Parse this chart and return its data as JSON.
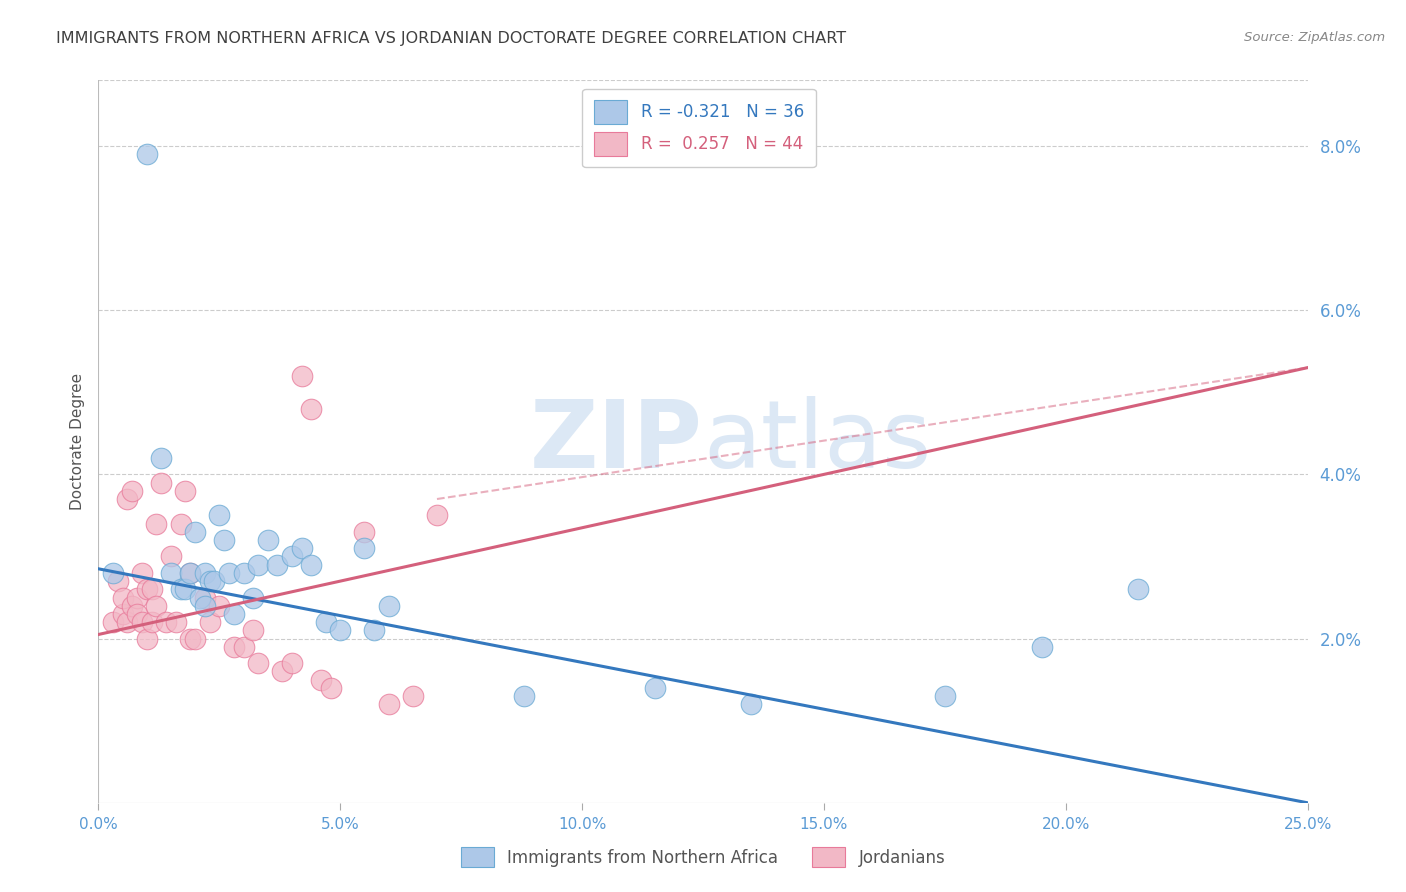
{
  "title": "IMMIGRANTS FROM NORTHERN AFRICA VS JORDANIAN DOCTORATE DEGREE CORRELATION CHART",
  "source": "Source: ZipAtlas.com",
  "ylabel": "Doctorate Degree",
  "right_ytick_labels": [
    "8.0%",
    "6.0%",
    "4.0%",
    "2.0%"
  ],
  "right_ytick_values": [
    0.08,
    0.06,
    0.04,
    0.02
  ],
  "xlim": [
    0.0,
    0.25
  ],
  "ylim": [
    0.0,
    0.088
  ],
  "xtick_labels": [
    "0.0%",
    "5.0%",
    "10.0%",
    "15.0%",
    "20.0%",
    "25.0%"
  ],
  "xtick_values": [
    0.0,
    0.05,
    0.1,
    0.15,
    0.2,
    0.25
  ],
  "blue_series_label": "Immigrants from Northern Africa",
  "blue_R": -0.321,
  "blue_N": 36,
  "pink_series_label": "Jordanians",
  "pink_R": 0.257,
  "pink_N": 44,
  "blue_color": "#adc8e8",
  "blue_edge_color": "#6aaad4",
  "blue_line_color": "#3478be",
  "pink_color": "#f2b8c6",
  "pink_edge_color": "#e87a9a",
  "pink_line_color": "#d4607c",
  "background_color": "#ffffff",
  "grid_color": "#cccccc",
  "title_color": "#404040",
  "watermark_zip": "ZIP",
  "watermark_atlas": "atlas",
  "watermark_color": "#dce8f5",
  "blue_scatter_x": [
    0.003,
    0.01,
    0.013,
    0.015,
    0.017,
    0.018,
    0.019,
    0.02,
    0.021,
    0.022,
    0.022,
    0.023,
    0.024,
    0.025,
    0.026,
    0.027,
    0.028,
    0.03,
    0.032,
    0.033,
    0.035,
    0.037,
    0.04,
    0.042,
    0.044,
    0.047,
    0.05,
    0.055,
    0.057,
    0.06,
    0.088,
    0.115,
    0.135,
    0.175,
    0.195,
    0.215
  ],
  "blue_scatter_y": [
    0.028,
    0.079,
    0.042,
    0.028,
    0.026,
    0.026,
    0.028,
    0.033,
    0.025,
    0.028,
    0.024,
    0.027,
    0.027,
    0.035,
    0.032,
    0.028,
    0.023,
    0.028,
    0.025,
    0.029,
    0.032,
    0.029,
    0.03,
    0.031,
    0.029,
    0.022,
    0.021,
    0.031,
    0.021,
    0.024,
    0.013,
    0.014,
    0.012,
    0.013,
    0.019,
    0.026
  ],
  "pink_scatter_x": [
    0.003,
    0.004,
    0.005,
    0.005,
    0.006,
    0.006,
    0.007,
    0.007,
    0.008,
    0.008,
    0.009,
    0.009,
    0.01,
    0.01,
    0.011,
    0.011,
    0.012,
    0.012,
    0.013,
    0.014,
    0.015,
    0.016,
    0.017,
    0.018,
    0.019,
    0.019,
    0.02,
    0.022,
    0.023,
    0.025,
    0.028,
    0.03,
    0.032,
    0.033,
    0.038,
    0.04,
    0.042,
    0.044,
    0.046,
    0.048,
    0.055,
    0.06,
    0.065,
    0.07
  ],
  "pink_scatter_y": [
    0.022,
    0.027,
    0.023,
    0.025,
    0.037,
    0.022,
    0.024,
    0.038,
    0.025,
    0.023,
    0.028,
    0.022,
    0.026,
    0.02,
    0.026,
    0.022,
    0.024,
    0.034,
    0.039,
    0.022,
    0.03,
    0.022,
    0.034,
    0.038,
    0.028,
    0.02,
    0.02,
    0.025,
    0.022,
    0.024,
    0.019,
    0.019,
    0.021,
    0.017,
    0.016,
    0.017,
    0.052,
    0.048,
    0.015,
    0.014,
    0.033,
    0.012,
    0.013,
    0.035
  ],
  "blue_trend_x": [
    0.0,
    0.25
  ],
  "blue_trend_y": [
    0.0285,
    0.0
  ],
  "pink_trend_x": [
    0.0,
    0.25
  ],
  "pink_trend_y": [
    0.0205,
    0.053
  ]
}
